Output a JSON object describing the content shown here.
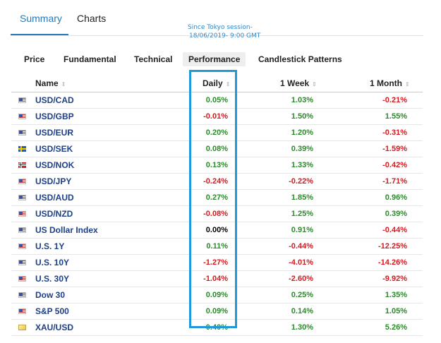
{
  "top_tabs": [
    {
      "label": "Summary",
      "active": true
    },
    {
      "label": "Charts",
      "active": false
    }
  ],
  "annotation": {
    "line1": "Since Tokyo session-",
    "line2": "18/06/2019- 9:00 GMT"
  },
  "sub_tabs": [
    {
      "label": "Price",
      "active": false
    },
    {
      "label": "Fundamental",
      "active": false
    },
    {
      "label": "Technical",
      "active": false
    },
    {
      "label": "Performance",
      "active": true
    },
    {
      "label": "Candlestick Patterns",
      "active": false
    }
  ],
  "columns": {
    "name": "Name",
    "daily": "Daily",
    "week": "1 Week",
    "month": "1 Month"
  },
  "sort_icon": "⇕",
  "rows": [
    {
      "flag": "us-flag",
      "name": "USD/CAD",
      "daily": "0.05%",
      "week": "1.03%",
      "month": "-0.21%"
    },
    {
      "flag": "us-flag",
      "name": "USD/GBP",
      "daily": "-0.01%",
      "week": "1.50%",
      "month": "1.55%"
    },
    {
      "flag": "us-flag",
      "name": "USD/EUR",
      "daily": "0.20%",
      "week": "1.20%",
      "month": "-0.31%"
    },
    {
      "flag": "se-flag",
      "name": "USD/SEK",
      "daily": "0.08%",
      "week": "0.39%",
      "month": "-1.59%"
    },
    {
      "flag": "no-flag",
      "name": "USD/NOK",
      "daily": "0.13%",
      "week": "1.33%",
      "month": "-0.42%"
    },
    {
      "flag": "us-flag",
      "name": "USD/JPY",
      "daily": "-0.24%",
      "week": "-0.22%",
      "month": "-1.71%"
    },
    {
      "flag": "us-flag",
      "name": "USD/AUD",
      "daily": "0.27%",
      "week": "1.85%",
      "month": "0.96%"
    },
    {
      "flag": "us-flag",
      "name": "USD/NZD",
      "daily": "-0.08%",
      "week": "1.25%",
      "month": "0.39%"
    },
    {
      "flag": "us-flag",
      "name": "US Dollar Index",
      "daily": "0.00%",
      "week": "0.91%",
      "month": "-0.44%"
    },
    {
      "flag": "us-flag",
      "name": "U.S. 1Y",
      "daily": "0.11%",
      "week": "-0.44%",
      "month": "-12.25%"
    },
    {
      "flag": "us-flag",
      "name": "U.S. 10Y",
      "daily": "-1.27%",
      "week": "-4.01%",
      "month": "-14.26%"
    },
    {
      "flag": "us-flag",
      "name": "U.S. 30Y",
      "daily": "-1.04%",
      "week": "-2.60%",
      "month": "-9.92%"
    },
    {
      "flag": "us-flag",
      "name": "Dow 30",
      "daily": "0.09%",
      "week": "0.25%",
      "month": "1.35%"
    },
    {
      "flag": "us-flag",
      "name": "S&P 500",
      "daily": "0.09%",
      "week": "0.14%",
      "month": "1.05%"
    },
    {
      "flag": "gold-flag",
      "name": "XAU/USD",
      "daily": "0.40%",
      "week": "1.30%",
      "month": "5.26%"
    }
  ],
  "colors": {
    "positive": "#2a8a2a",
    "negative": "#d6181f",
    "accent": "#2a7ab5",
    "highlight": "#1e9ad6"
  }
}
